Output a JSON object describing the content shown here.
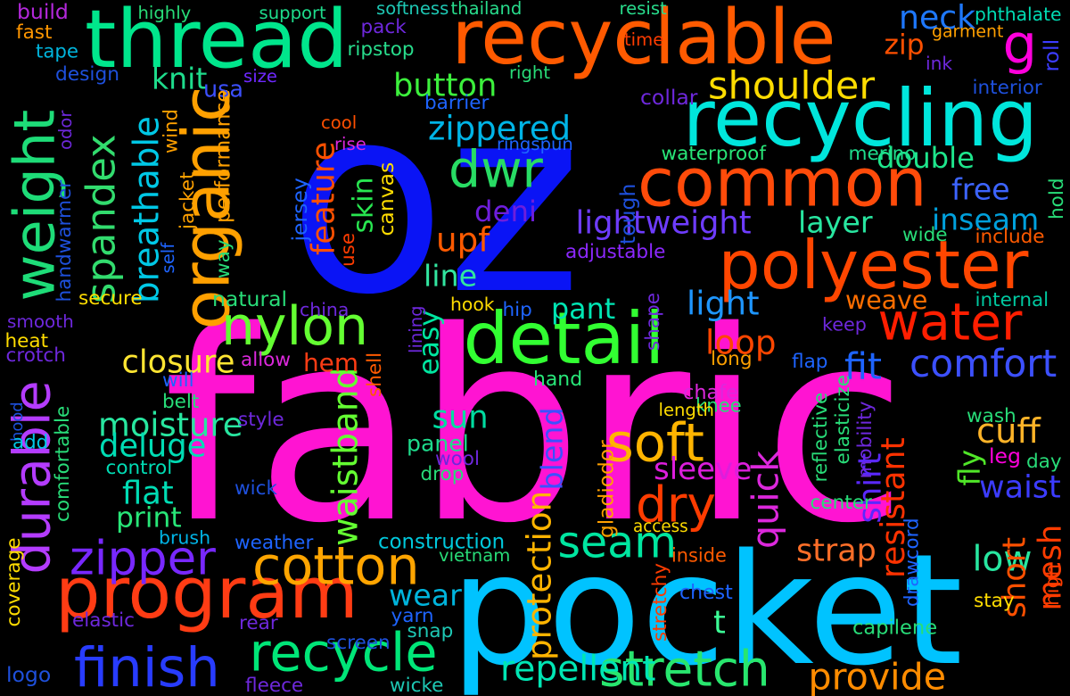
{
  "words": [
    {
      "text": "oz",
      "color": "#0a14f5",
      "vertical": false
    },
    {
      "text": "fabric",
      "color": "#ff14d2",
      "vertical": false
    },
    {
      "text": "pocket",
      "color": "#00c3ff",
      "vertical": false
    },
    {
      "text": "recyclable",
      "color": "#ff5a00",
      "vertical": false
    },
    {
      "text": "recycling",
      "color": "#00e6dc",
      "vertical": false
    },
    {
      "text": "thread",
      "color": "#00e68c",
      "vertical": false
    },
    {
      "text": "common",
      "color": "#ff4b0a",
      "vertical": false
    },
    {
      "text": "polyester",
      "color": "#ff4600",
      "vertical": false
    },
    {
      "text": "program",
      "color": "#ff3c14",
      "vertical": false
    },
    {
      "text": "detail",
      "color": "#32ff32",
      "vertical": false
    },
    {
      "text": "weight",
      "color": "#1edc78",
      "vertical": true
    },
    {
      "text": "organic",
      "color": "#ffa000",
      "vertical": true
    },
    {
      "text": "durable",
      "color": "#b43cff",
      "vertical": true
    },
    {
      "text": "spandex",
      "color": "#32dc6e",
      "vertical": true
    },
    {
      "text": "soft",
      "color": "#ffb400",
      "vertical": false
    },
    {
      "text": "water",
      "color": "#ff1e00",
      "vertical": false
    },
    {
      "text": "cotton",
      "color": "#ffa500",
      "vertical": false
    },
    {
      "text": "recycle",
      "color": "#00e678",
      "vertical": false
    },
    {
      "text": "finish",
      "color": "#283cff",
      "vertical": false
    },
    {
      "text": "stretch",
      "color": "#28e66e",
      "vertical": false
    },
    {
      "text": "dwr",
      "color": "#28dc64",
      "vertical": false
    },
    {
      "text": "nylon",
      "color": "#64ff32",
      "vertical": false
    },
    {
      "text": "zipper",
      "color": "#7828ff",
      "vertical": false
    },
    {
      "text": "dry",
      "color": "#ff3c00",
      "vertical": false
    },
    {
      "text": "seam",
      "color": "#00e6a0",
      "vertical": false
    },
    {
      "text": "repellent",
      "color": "#00e6b4",
      "vertical": false
    },
    {
      "text": "provide",
      "color": "#ff8c00",
      "vertical": false
    },
    {
      "text": "g",
      "color": "#ff00dc",
      "vertical": false
    },
    {
      "text": "shoulder",
      "color": "#ffdc00",
      "vertical": false
    },
    {
      "text": "breathable",
      "color": "#00c8e6",
      "vertical": true
    },
    {
      "text": "fit",
      "color": "#1e64ff",
      "vertical": false
    },
    {
      "text": "comfort",
      "color": "#3c50ff",
      "vertical": false
    },
    {
      "text": "lightweight",
      "color": "#6e3cff",
      "vertical": false
    },
    {
      "text": "zippered",
      "color": "#00b4e6",
      "vertical": false
    },
    {
      "text": "moisture",
      "color": "#28e6a0",
      "vertical": false
    },
    {
      "text": "deluge",
      "color": "#00dcb4",
      "vertical": false
    },
    {
      "text": "closure",
      "color": "#ffe632",
      "vertical": false
    },
    {
      "text": "waistband",
      "color": "#64ff32",
      "vertical": true
    },
    {
      "text": "protection",
      "color": "#ffb400",
      "vertical": true
    },
    {
      "text": "quick",
      "color": "#dc28dc",
      "vertical": true
    },
    {
      "text": "resistant",
      "color": "#ff3200",
      "vertical": true
    },
    {
      "text": "shirt",
      "color": "#5a28ff",
      "vertical": true
    },
    {
      "text": "sleeve",
      "color": "#dc1edc",
      "vertical": false
    },
    {
      "text": "cuff",
      "color": "#ffb428",
      "vertical": false
    },
    {
      "text": "waist",
      "color": "#3c3cff",
      "vertical": false
    },
    {
      "text": "button",
      "color": "#3cf03c",
      "vertical": false
    },
    {
      "text": "knit",
      "color": "#1edc8c",
      "vertical": false
    },
    {
      "text": "usa",
      "color": "#3c50ff",
      "vertical": false
    },
    {
      "text": "upf",
      "color": "#ff5a00",
      "vertical": false
    },
    {
      "text": "deni",
      "color": "#6e1edc",
      "vertical": false
    },
    {
      "text": "line",
      "color": "#32e6a0",
      "vertical": false
    },
    {
      "text": "pant",
      "color": "#00e6b4",
      "vertical": false
    },
    {
      "text": "light",
      "color": "#1e96ff",
      "vertical": false
    },
    {
      "text": "loop",
      "color": "#ff4600",
      "vertical": false
    },
    {
      "text": "weave",
      "color": "#ff6e00",
      "vertical": false
    },
    {
      "text": "layer",
      "color": "#28e6a0",
      "vertical": false
    },
    {
      "text": "inseam",
      "color": "#00a0dc",
      "vertical": false
    },
    {
      "text": "free",
      "color": "#3c64ff",
      "vertical": false
    },
    {
      "text": "double",
      "color": "#1ee68c",
      "vertical": false
    },
    {
      "text": "neck",
      "color": "#1e78ff",
      "vertical": false
    },
    {
      "text": "zip",
      "color": "#ff5000",
      "vertical": false
    },
    {
      "text": "skin",
      "color": "#28e650",
      "vertical": true
    },
    {
      "text": "feature",
      "color": "#ff5000",
      "vertical": true
    },
    {
      "text": "hem",
      "color": "#ff3c14",
      "vertical": false
    },
    {
      "text": "easy",
      "color": "#00e6a0",
      "vertical": true
    },
    {
      "text": "sun",
      "color": "#00dca0",
      "vertical": false
    },
    {
      "text": "flat",
      "color": "#00dcb4",
      "vertical": false
    },
    {
      "text": "print",
      "color": "#28e678",
      "vertical": false
    },
    {
      "text": "blend",
      "color": "#3c50ff",
      "vertical": true
    },
    {
      "text": "strap",
      "color": "#ff6e28",
      "vertical": false
    },
    {
      "text": "low",
      "color": "#28e6a0",
      "vertical": false
    },
    {
      "text": "mesh",
      "color": "#ff3c00",
      "vertical": true
    },
    {
      "text": "short",
      "color": "#ff5000",
      "vertical": true
    },
    {
      "text": "fly",
      "color": "#50e628",
      "vertical": true
    },
    {
      "text": "wear",
      "color": "#00b4dc",
      "vertical": false
    },
    {
      "text": "t",
      "color": "#3cff96",
      "vertical": false
    },
    {
      "text": "waterproof",
      "color": "#28e678",
      "vertical": false
    },
    {
      "text": "merino",
      "color": "#1edc8c",
      "vertical": false
    },
    {
      "text": "adjustable",
      "color": "#8c28ff",
      "vertical": false
    },
    {
      "text": "panel",
      "color": "#1edc8c",
      "vertical": false
    },
    {
      "text": "hand",
      "color": "#28e678",
      "vertical": false
    },
    {
      "text": "brush",
      "color": "#00b4e6",
      "vertical": false
    },
    {
      "text": "construction",
      "color": "#00c8dc",
      "vertical": false
    },
    {
      "text": "control",
      "color": "#00dcb4",
      "vertical": false
    },
    {
      "text": "softness",
      "color": "#1ec8b4",
      "vertical": false
    },
    {
      "text": "thailand",
      "color": "#28dc8c",
      "vertical": false
    },
    {
      "text": "resist",
      "color": "#28dc8c",
      "vertical": false
    },
    {
      "text": "phthalate",
      "color": "#00dcb4",
      "vertical": false
    },
    {
      "text": "garment",
      "color": "#ffa000",
      "vertical": false
    },
    {
      "text": "support",
      "color": "#1edc8c",
      "vertical": false
    },
    {
      "text": "highly",
      "color": "#28dc78",
      "vertical": false
    },
    {
      "text": "build",
      "color": "#b428dc",
      "vertical": false
    },
    {
      "text": "fast",
      "color": "#ff9600",
      "vertical": false
    },
    {
      "text": "tape",
      "color": "#00b4dc",
      "vertical": false
    },
    {
      "text": "design",
      "color": "#1e50dc",
      "vertical": false
    },
    {
      "text": "pack",
      "color": "#6e28dc",
      "vertical": false
    },
    {
      "text": "ripstop",
      "color": "#28dc8c",
      "vertical": false
    },
    {
      "text": "time",
      "color": "#ff3c00",
      "vertical": false
    },
    {
      "text": "right",
      "color": "#28dc78",
      "vertical": false
    },
    {
      "text": "collar",
      "color": "#6e28dc",
      "vertical": false
    },
    {
      "text": "size",
      "color": "#6e28ff",
      "vertical": false
    },
    {
      "text": "barrier",
      "color": "#1e64ff",
      "vertical": false
    },
    {
      "text": "ringspun",
      "color": "#1e64ff",
      "vertical": false
    },
    {
      "text": "cool",
      "color": "#ff5000",
      "vertical": false
    },
    {
      "text": "rise",
      "color": "#dc28dc",
      "vertical": false
    },
    {
      "text": "ink",
      "color": "#6e28dc",
      "vertical": false
    },
    {
      "text": "interior",
      "color": "#1e50dc",
      "vertical": false
    },
    {
      "text": "roll",
      "color": "#3c3cff",
      "vertical": true
    },
    {
      "text": "odor",
      "color": "#6e28dc",
      "vertical": true
    },
    {
      "text": "wind",
      "color": "#ffa000",
      "vertical": true
    },
    {
      "text": "performance",
      "color": "#ffa000",
      "vertical": true
    },
    {
      "text": "jacket",
      "color": "#ffa000",
      "vertical": true
    },
    {
      "text": "self",
      "color": "#1e64ff",
      "vertical": true
    },
    {
      "text": "handwarmer",
      "color": "#1e50dc",
      "vertical": true
    },
    {
      "text": "way",
      "color": "#28dc78",
      "vertical": true
    },
    {
      "text": "jersey",
      "color": "#1e64ff",
      "vertical": true
    },
    {
      "text": "use",
      "color": "#ff3c00",
      "vertical": true
    },
    {
      "text": "canvas",
      "color": "#ffdc00",
      "vertical": true
    },
    {
      "text": "tough",
      "color": "#1e50dc",
      "vertical": true
    },
    {
      "text": "wide",
      "color": "#28dc78",
      "vertical": false
    },
    {
      "text": "include",
      "color": "#ff5a00",
      "vertical": false
    },
    {
      "text": "hold",
      "color": "#28dc78",
      "vertical": true
    },
    {
      "text": "secure",
      "color": "#ffdc00",
      "vertical": false
    },
    {
      "text": "natural",
      "color": "#28dc78",
      "vertical": false
    },
    {
      "text": "china",
      "color": "#6e28dc",
      "vertical": false
    },
    {
      "text": "hook",
      "color": "#ffdc00",
      "vertical": false
    },
    {
      "text": "hip",
      "color": "#1e64ff",
      "vertical": false
    },
    {
      "text": "lining",
      "color": "#6e28dc",
      "vertical": true
    },
    {
      "text": "shape",
      "color": "#6e28dc",
      "vertical": true
    },
    {
      "text": "internal",
      "color": "#00c8a0",
      "vertical": false
    },
    {
      "text": "keep",
      "color": "#6e28dc",
      "vertical": false
    },
    {
      "text": "smooth",
      "color": "#6e28dc",
      "vertical": false
    },
    {
      "text": "heat",
      "color": "#ffdc00",
      "vertical": false
    },
    {
      "text": "crotch",
      "color": "#6e28dc",
      "vertical": false
    },
    {
      "text": "allow",
      "color": "#dc28dc",
      "vertical": false
    },
    {
      "text": "shell",
      "color": "#ff5a00",
      "vertical": true
    },
    {
      "text": "long",
      "color": "#ffa000",
      "vertical": false
    },
    {
      "text": "flap",
      "color": "#1e64ff",
      "vertical": false
    },
    {
      "text": "will",
      "color": "#1e64ff",
      "vertical": false
    },
    {
      "text": "belt",
      "color": "#28dc78",
      "vertical": false
    },
    {
      "text": "chafe",
      "color": "#dc28dc",
      "vertical": false
    },
    {
      "text": "knee",
      "color": "#28dc78",
      "vertical": false
    },
    {
      "text": "length",
      "color": "#ffdc00",
      "vertical": false
    },
    {
      "text": "reflective",
      "color": "#28dc78",
      "vertical": true
    },
    {
      "text": "elasticize",
      "color": "#28dc78",
      "vertical": true
    },
    {
      "text": "mobility",
      "color": "#6e28dc",
      "vertical": true
    },
    {
      "text": "wash",
      "color": "#28dc78",
      "vertical": false
    },
    {
      "text": "leg",
      "color": "#ff00dc",
      "vertical": false
    },
    {
      "text": "day",
      "color": "#28dc78",
      "vertical": false
    },
    {
      "text": "hood",
      "color": "#1e50dc",
      "vertical": true
    },
    {
      "text": "add",
      "color": "#00c8e6",
      "vertical": false
    },
    {
      "text": "style",
      "color": "#6e28dc",
      "vertical": false
    },
    {
      "text": "comfortable",
      "color": "#28dc78",
      "vertical": true
    },
    {
      "text": "wick",
      "color": "#1e50dc",
      "vertical": false
    },
    {
      "text": "wool",
      "color": "#6e28dc",
      "vertical": false
    },
    {
      "text": "drop",
      "color": "#28dc78",
      "vertical": false
    },
    {
      "text": "gladiodor",
      "color": "#ffa000",
      "vertical": true
    },
    {
      "text": "access",
      "color": "#ffdc00",
      "vertical": false
    },
    {
      "text": "center",
      "color": "#28dc78",
      "vertical": false
    },
    {
      "text": "drawcord",
      "color": "#1e64ff",
      "vertical": true
    },
    {
      "text": "weather",
      "color": "#1e64ff",
      "vertical": false
    },
    {
      "text": "coverage",
      "color": "#ffdc00",
      "vertical": true
    },
    {
      "text": "vietnam",
      "color": "#28dc78",
      "vertical": false
    },
    {
      "text": "inside",
      "color": "#ff5a00",
      "vertical": false
    },
    {
      "text": "chest",
      "color": "#1e64ff",
      "vertical": false
    },
    {
      "text": "stay",
      "color": "#ffdc00",
      "vertical": false
    },
    {
      "text": "high",
      "color": "#ff3c00",
      "vertical": true
    },
    {
      "text": "capilene",
      "color": "#28dc78",
      "vertical": false
    },
    {
      "text": "stretchy",
      "color": "#ff3c00",
      "vertical": true
    },
    {
      "text": "elastic",
      "color": "#6e28dc",
      "vertical": false
    },
    {
      "text": "rear",
      "color": "#6e28dc",
      "vertical": false
    },
    {
      "text": "yarn",
      "color": "#1e64ff",
      "vertical": false
    },
    {
      "text": "snap",
      "color": "#1ec8b4",
      "vertical": false
    },
    {
      "text": "screen",
      "color": "#1e50dc",
      "vertical": false
    },
    {
      "text": "logo",
      "color": "#1e50dc",
      "vertical": false
    },
    {
      "text": "fleece",
      "color": "#6e28dc",
      "vertical": false
    },
    {
      "text": "wicke",
      "color": "#1ec8b4",
      "vertical": false
    }
  ]
}
